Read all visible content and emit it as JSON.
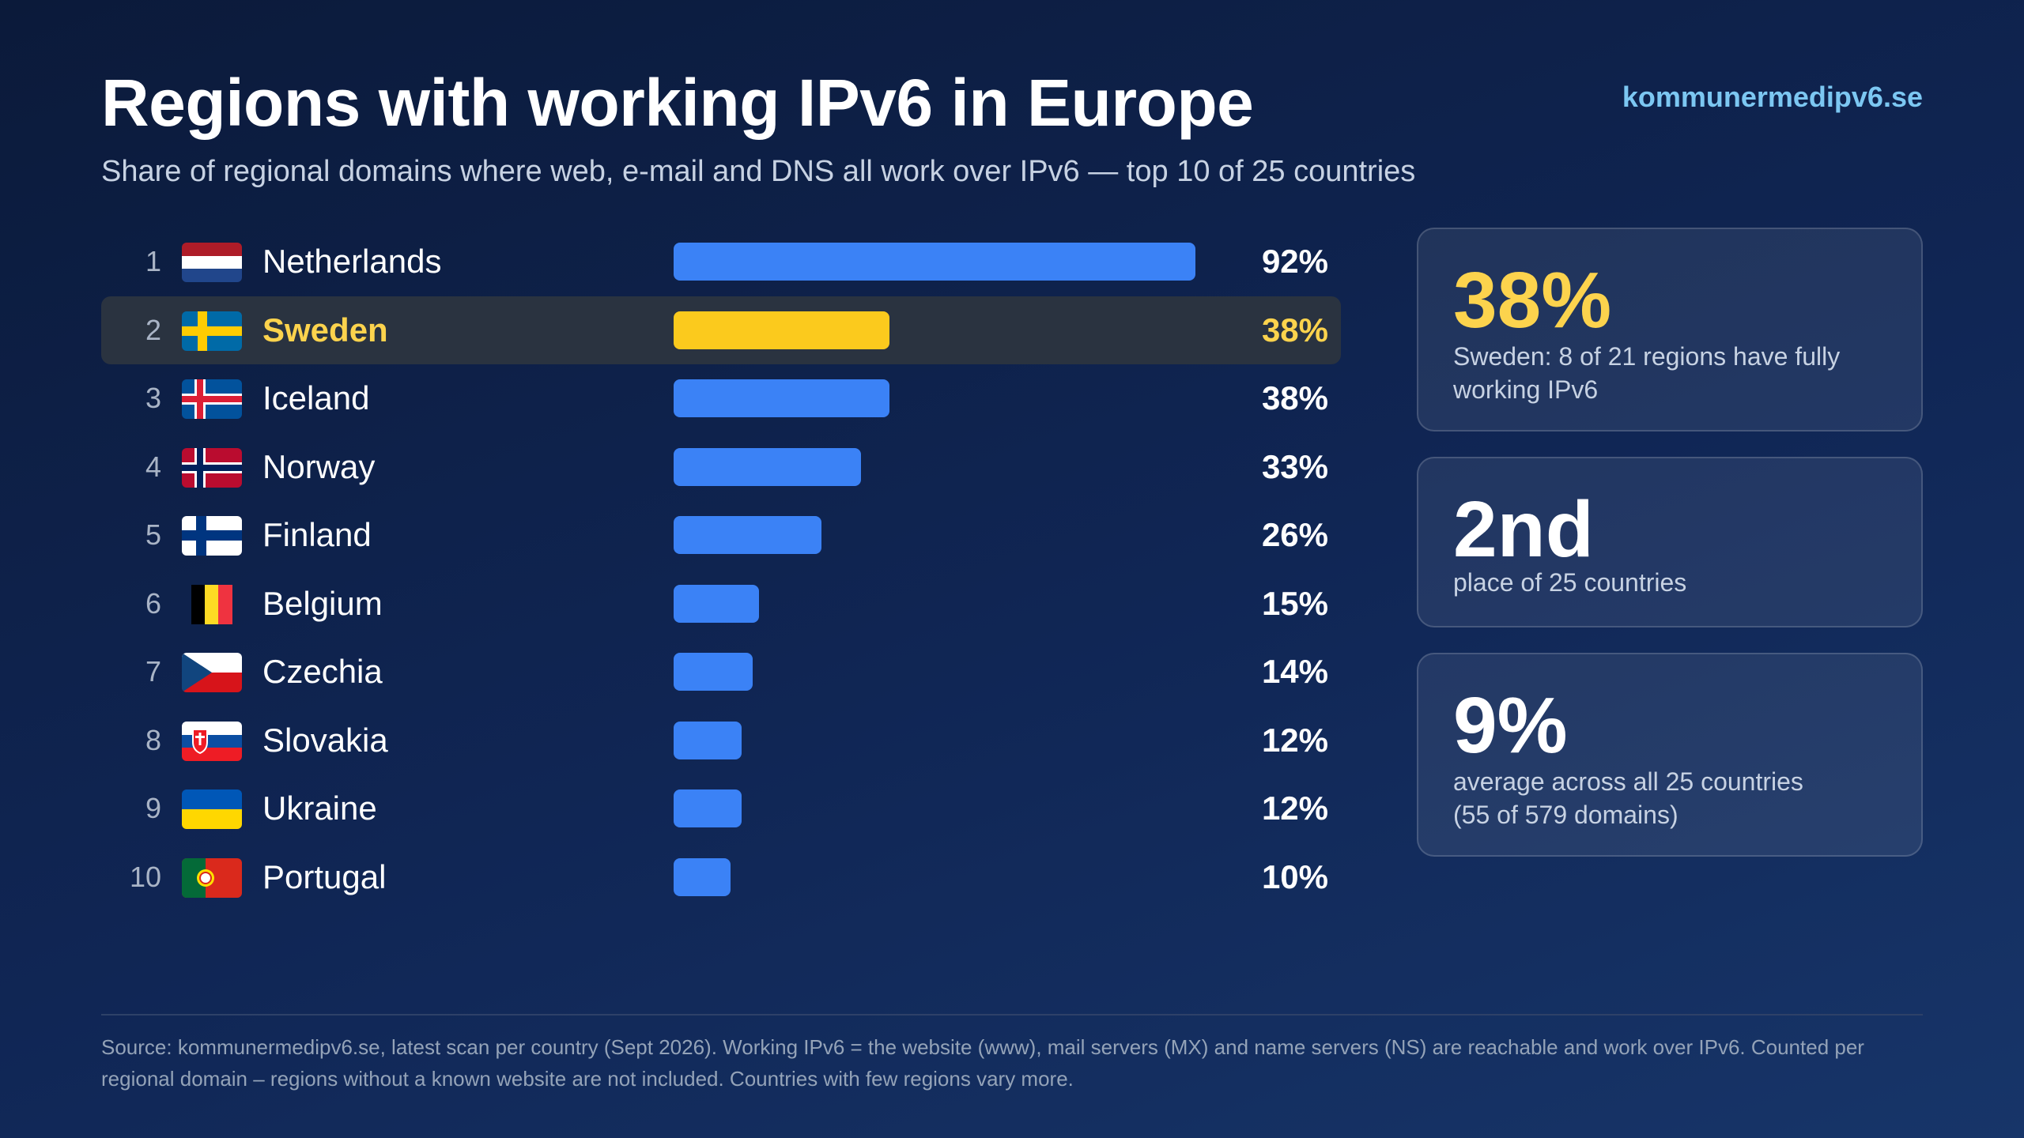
{
  "header": {
    "title": "Regions with working IPv6 in Europe",
    "subtitle": "Share of regional domains where web, e-mail and DNS all work over IPv6 — top 10 of 25 countries",
    "site": "kommunermedipv6.se"
  },
  "chart_data": {
    "type": "bar",
    "orientation": "horizontal",
    "title": "Regions with working IPv6 in Europe",
    "subtitle": "Share of regional domains where web, e-mail and DNS all work over IPv6 — top 10 of 25 countries",
    "xlabel": "",
    "ylabel": "",
    "xlim": [
      0,
      100
    ],
    "grid": false,
    "highlight_color": "#fbca1d",
    "bar_color": "#3b82f6",
    "categories": [
      "Netherlands",
      "Sweden",
      "Iceland",
      "Norway",
      "Finland",
      "Belgium",
      "Czechia",
      "Slovakia",
      "Ukraine",
      "Portugal"
    ],
    "ranks": [
      "1",
      "2",
      "3",
      "4",
      "5",
      "6",
      "7",
      "8",
      "9",
      "10"
    ],
    "values": [
      92,
      38,
      38,
      33,
      26,
      15,
      14,
      12,
      12,
      10
    ],
    "value_labels": [
      "92%",
      "38%",
      "38%",
      "33%",
      "26%",
      "15%",
      "14%",
      "12%",
      "12%",
      "10%"
    ],
    "flags": [
      "netherlands-flag",
      "sweden-flag",
      "iceland-flag",
      "norway-flag",
      "finland-flag",
      "belgium-flag",
      "czechia-flag",
      "slovakia-flag",
      "ukraine-flag",
      "portugal-flag"
    ],
    "highlighted": "Sweden"
  },
  "cards": [
    {
      "value": "38%",
      "description": "Sweden: 8 of 21 regions have fully working IPv6"
    },
    {
      "value": "2nd",
      "description": "place of 25 countries"
    },
    {
      "value": "9%",
      "description": "average across all 25 countries\n(55 of 579 domains)"
    }
  ],
  "footnote": "Source: kommunermedipv6.se, latest scan per country (Sept 2026). Working IPv6 = the website (www), mail servers (MX) and name servers (NS) are reachable and work over IPv6. Counted per regional domain – regions without a known website are not included. Countries with few regions vary more.",
  "colors": {
    "accent": "#7cc7f2",
    "highlight": "#fcd34d",
    "bar": "#3b82f6",
    "highlight_bar": "#fbca1d"
  }
}
